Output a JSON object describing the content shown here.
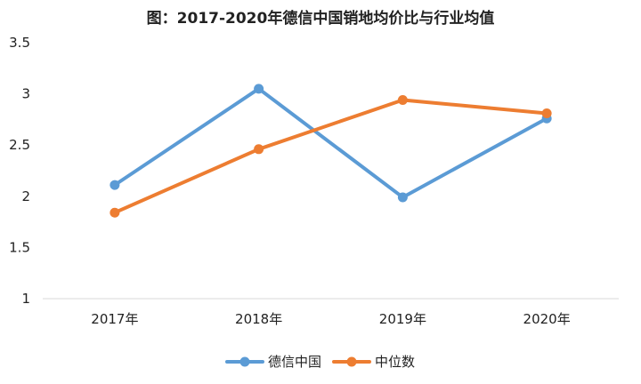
{
  "chart_data": {
    "type": "line",
    "title": "图：2017-2020年德信中国销地均价比与行业均值",
    "categories": [
      "2017年",
      "2018年",
      "2019年",
      "2020年"
    ],
    "ylim": [
      1,
      3.5
    ],
    "yticks": [
      "1",
      "1.5",
      "2",
      "2.5",
      "3",
      "3.5"
    ],
    "grid": false,
    "legend_position": "bottom",
    "series": [
      {
        "name": "德信中国",
        "color": "#5b9bd5",
        "values": [
          2.11,
          3.05,
          1.99,
          2.76
        ]
      },
      {
        "name": "中位数",
        "color": "#ed7d31",
        "values": [
          1.84,
          2.46,
          2.94,
          2.81
        ]
      }
    ]
  }
}
